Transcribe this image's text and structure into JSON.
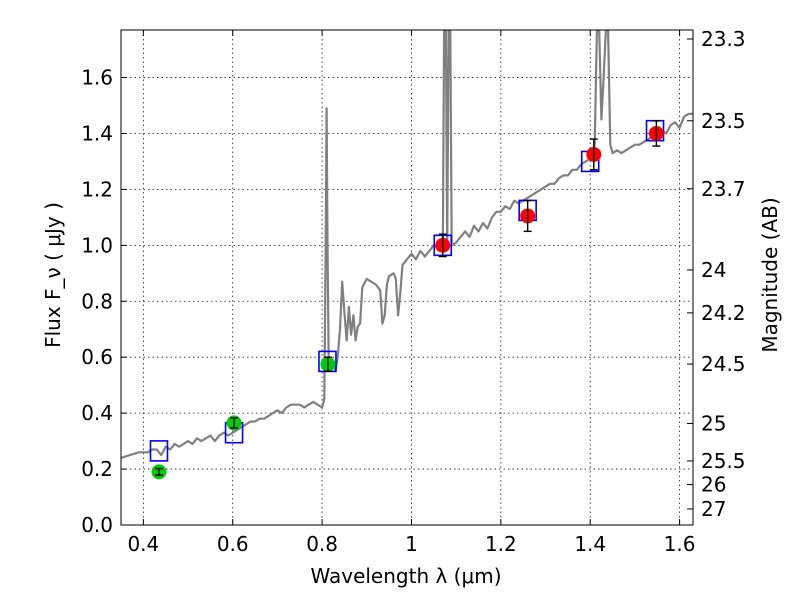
{
  "chart_data": {
    "type": "scatter",
    "xlabel": "Wavelength  λ (μm)",
    "ylabel": "Flux  F_ν  ( μJy )",
    "y2label": "Magnitude (AB)",
    "xlim": [
      0.35,
      1.63
    ],
    "ylim": [
      0.0,
      1.77
    ],
    "grid": true,
    "x_ticks": [
      {
        "value": 0.4,
        "label": "0.4"
      },
      {
        "value": 0.6,
        "label": "0.6"
      },
      {
        "value": 0.8,
        "label": "0.8"
      },
      {
        "value": 1.0,
        "label": "1"
      },
      {
        "value": 1.2,
        "label": "1.2"
      },
      {
        "value": 1.4,
        "label": "1.4"
      },
      {
        "value": 1.6,
        "label": "1.6"
      }
    ],
    "y_ticks": [
      {
        "value": 0.0,
        "label": "0.0"
      },
      {
        "value": 0.2,
        "label": "0.2"
      },
      {
        "value": 0.4,
        "label": "0.4"
      },
      {
        "value": 0.6,
        "label": "0.6"
      },
      {
        "value": 0.8,
        "label": "0.8"
      },
      {
        "value": 1.0,
        "label": "1.0"
      },
      {
        "value": 1.2,
        "label": "1.2"
      },
      {
        "value": 1.4,
        "label": "1.4"
      },
      {
        "value": 1.6,
        "label": "1.6"
      }
    ],
    "y2_ticks": [
      {
        "mag": 23.3,
        "label": "23.3"
      },
      {
        "mag": 23.5,
        "label": "23.5"
      },
      {
        "mag": 23.7,
        "label": "23.7"
      },
      {
        "mag": 24,
        "label": "24"
      },
      {
        "mag": 24.2,
        "label": "24.2"
      },
      {
        "mag": 24.5,
        "label": "24.5"
      },
      {
        "mag": 25,
        "label": "25"
      },
      {
        "mag": 25.5,
        "label": "25.5"
      },
      {
        "mag": 26,
        "label": "26"
      },
      {
        "mag": 27,
        "label": "27"
      }
    ],
    "series": [
      {
        "kind": "line",
        "color": "#808080",
        "points": [
          [
            0.35,
            0.24
          ],
          [
            0.37,
            0.25
          ],
          [
            0.39,
            0.26
          ],
          [
            0.41,
            0.26
          ],
          [
            0.42,
            0.27
          ],
          [
            0.43,
            0.27
          ],
          [
            0.44,
            0.25
          ],
          [
            0.45,
            0.28
          ],
          [
            0.46,
            0.27
          ],
          [
            0.47,
            0.29
          ],
          [
            0.48,
            0.28
          ],
          [
            0.49,
            0.29
          ],
          [
            0.5,
            0.3
          ],
          [
            0.51,
            0.29
          ],
          [
            0.52,
            0.31
          ],
          [
            0.53,
            0.3
          ],
          [
            0.54,
            0.31
          ],
          [
            0.55,
            0.32
          ],
          [
            0.56,
            0.3
          ],
          [
            0.57,
            0.32
          ],
          [
            0.58,
            0.33
          ],
          [
            0.59,
            0.32
          ],
          [
            0.6,
            0.33
          ],
          [
            0.61,
            0.34
          ],
          [
            0.62,
            0.35
          ],
          [
            0.63,
            0.36
          ],
          [
            0.64,
            0.37
          ],
          [
            0.65,
            0.37
          ],
          [
            0.66,
            0.38
          ],
          [
            0.67,
            0.38
          ],
          [
            0.68,
            0.39
          ],
          [
            0.69,
            0.4
          ],
          [
            0.7,
            0.41
          ],
          [
            0.71,
            0.4
          ],
          [
            0.72,
            0.42
          ],
          [
            0.73,
            0.43
          ],
          [
            0.74,
            0.43
          ],
          [
            0.75,
            0.43
          ],
          [
            0.76,
            0.42
          ],
          [
            0.77,
            0.43
          ],
          [
            0.78,
            0.44
          ],
          [
            0.79,
            0.43
          ],
          [
            0.8,
            0.42
          ],
          [
            0.805,
            0.45
          ],
          [
            0.808,
            1.0
          ],
          [
            0.81,
            1.49
          ],
          [
            0.812,
            1.0
          ],
          [
            0.815,
            0.55
          ],
          [
            0.82,
            0.56
          ],
          [
            0.825,
            0.58
          ],
          [
            0.83,
            0.55
          ],
          [
            0.835,
            0.6
          ],
          [
            0.84,
            0.7
          ],
          [
            0.845,
            0.87
          ],
          [
            0.85,
            0.76
          ],
          [
            0.855,
            0.66
          ],
          [
            0.86,
            0.78
          ],
          [
            0.865,
            0.68
          ],
          [
            0.87,
            0.75
          ],
          [
            0.875,
            0.66
          ],
          [
            0.88,
            0.71
          ],
          [
            0.885,
            0.72
          ],
          [
            0.89,
            0.85
          ],
          [
            0.9,
            0.88
          ],
          [
            0.91,
            0.87
          ],
          [
            0.92,
            0.86
          ],
          [
            0.93,
            0.84
          ],
          [
            0.935,
            0.72
          ],
          [
            0.94,
            0.75
          ],
          [
            0.945,
            0.86
          ],
          [
            0.95,
            0.89
          ],
          [
            0.96,
            0.9
          ],
          [
            0.965,
            0.88
          ],
          [
            0.97,
            0.75
          ],
          [
            0.975,
            0.83
          ],
          [
            0.98,
            0.93
          ],
          [
            0.99,
            0.95
          ],
          [
            1.0,
            0.97
          ],
          [
            1.01,
            0.95
          ],
          [
            1.02,
            0.98
          ],
          [
            1.03,
            0.96
          ],
          [
            1.04,
            0.98
          ],
          [
            1.05,
            1.0
          ],
          [
            1.06,
            0.99
          ],
          [
            1.07,
            0.98
          ],
          [
            1.073,
            1.77
          ],
          [
            1.077,
            1.77
          ],
          [
            1.08,
            0.99
          ],
          [
            1.083,
            1.77
          ],
          [
            1.087,
            1.77
          ],
          [
            1.09,
            1.0
          ],
          [
            1.1,
            1.01
          ],
          [
            1.11,
            1.03
          ],
          [
            1.12,
            1.05
          ],
          [
            1.13,
            1.03
          ],
          [
            1.14,
            1.07
          ],
          [
            1.15,
            1.05
          ],
          [
            1.16,
            1.08
          ],
          [
            1.17,
            1.06
          ],
          [
            1.18,
            1.1
          ],
          [
            1.19,
            1.12
          ],
          [
            1.2,
            1.12
          ],
          [
            1.21,
            1.14
          ],
          [
            1.22,
            1.13
          ],
          [
            1.23,
            1.16
          ],
          [
            1.24,
            1.15
          ],
          [
            1.25,
            1.16
          ],
          [
            1.26,
            1.17
          ],
          [
            1.27,
            1.18
          ],
          [
            1.28,
            1.19
          ],
          [
            1.29,
            1.2
          ],
          [
            1.3,
            1.21
          ],
          [
            1.31,
            1.22
          ],
          [
            1.32,
            1.22
          ],
          [
            1.33,
            1.24
          ],
          [
            1.34,
            1.25
          ],
          [
            1.35,
            1.25
          ],
          [
            1.36,
            1.27
          ],
          [
            1.37,
            1.27
          ],
          [
            1.38,
            1.29
          ],
          [
            1.39,
            1.3
          ],
          [
            1.4,
            1.31
          ],
          [
            1.41,
            1.36
          ],
          [
            1.415,
            1.77
          ],
          [
            1.42,
            1.77
          ],
          [
            1.425,
            1.45
          ],
          [
            1.43,
            1.6
          ],
          [
            1.435,
            1.77
          ],
          [
            1.44,
            1.77
          ],
          [
            1.445,
            1.36
          ],
          [
            1.45,
            1.33
          ],
          [
            1.46,
            1.34
          ],
          [
            1.47,
            1.33
          ],
          [
            1.48,
            1.34
          ],
          [
            1.49,
            1.35
          ],
          [
            1.5,
            1.36
          ],
          [
            1.51,
            1.36
          ],
          [
            1.52,
            1.37
          ],
          [
            1.53,
            1.38
          ],
          [
            1.54,
            1.39
          ],
          [
            1.55,
            1.4
          ],
          [
            1.56,
            1.41
          ],
          [
            1.57,
            1.4
          ],
          [
            1.58,
            1.43
          ],
          [
            1.59,
            1.44
          ],
          [
            1.6,
            1.42
          ],
          [
            1.61,
            1.46
          ],
          [
            1.62,
            1.47
          ],
          [
            1.63,
            1.47
          ]
        ]
      },
      {
        "kind": "open-square",
        "color": "#0000ff",
        "points": [
          [
            0.435,
            0.265
          ],
          [
            0.603,
            0.33
          ],
          [
            0.812,
            0.585
          ],
          [
            1.07,
            1.0
          ],
          [
            1.26,
            1.125
          ],
          [
            1.4,
            1.3
          ],
          [
            1.545,
            1.41
          ]
        ]
      },
      {
        "kind": "filled-circle",
        "color": "#00cc00",
        "points": [
          {
            "x": 0.435,
            "y": 0.19,
            "err": 0.012
          },
          {
            "x": 0.603,
            "y": 0.365,
            "err": 0.018
          },
          {
            "x": 0.813,
            "y": 0.575,
            "err": 0.025
          }
        ]
      },
      {
        "kind": "filled-circle",
        "color": "#ff0000",
        "points": [
          {
            "x": 1.07,
            "y": 1.0,
            "err": 0.04
          },
          {
            "x": 1.26,
            "y": 1.105,
            "err": 0.055
          },
          {
            "x": 1.408,
            "y": 1.325,
            "err": 0.055
          },
          {
            "x": 1.548,
            "y": 1.4,
            "err": 0.045
          }
        ]
      }
    ]
  }
}
